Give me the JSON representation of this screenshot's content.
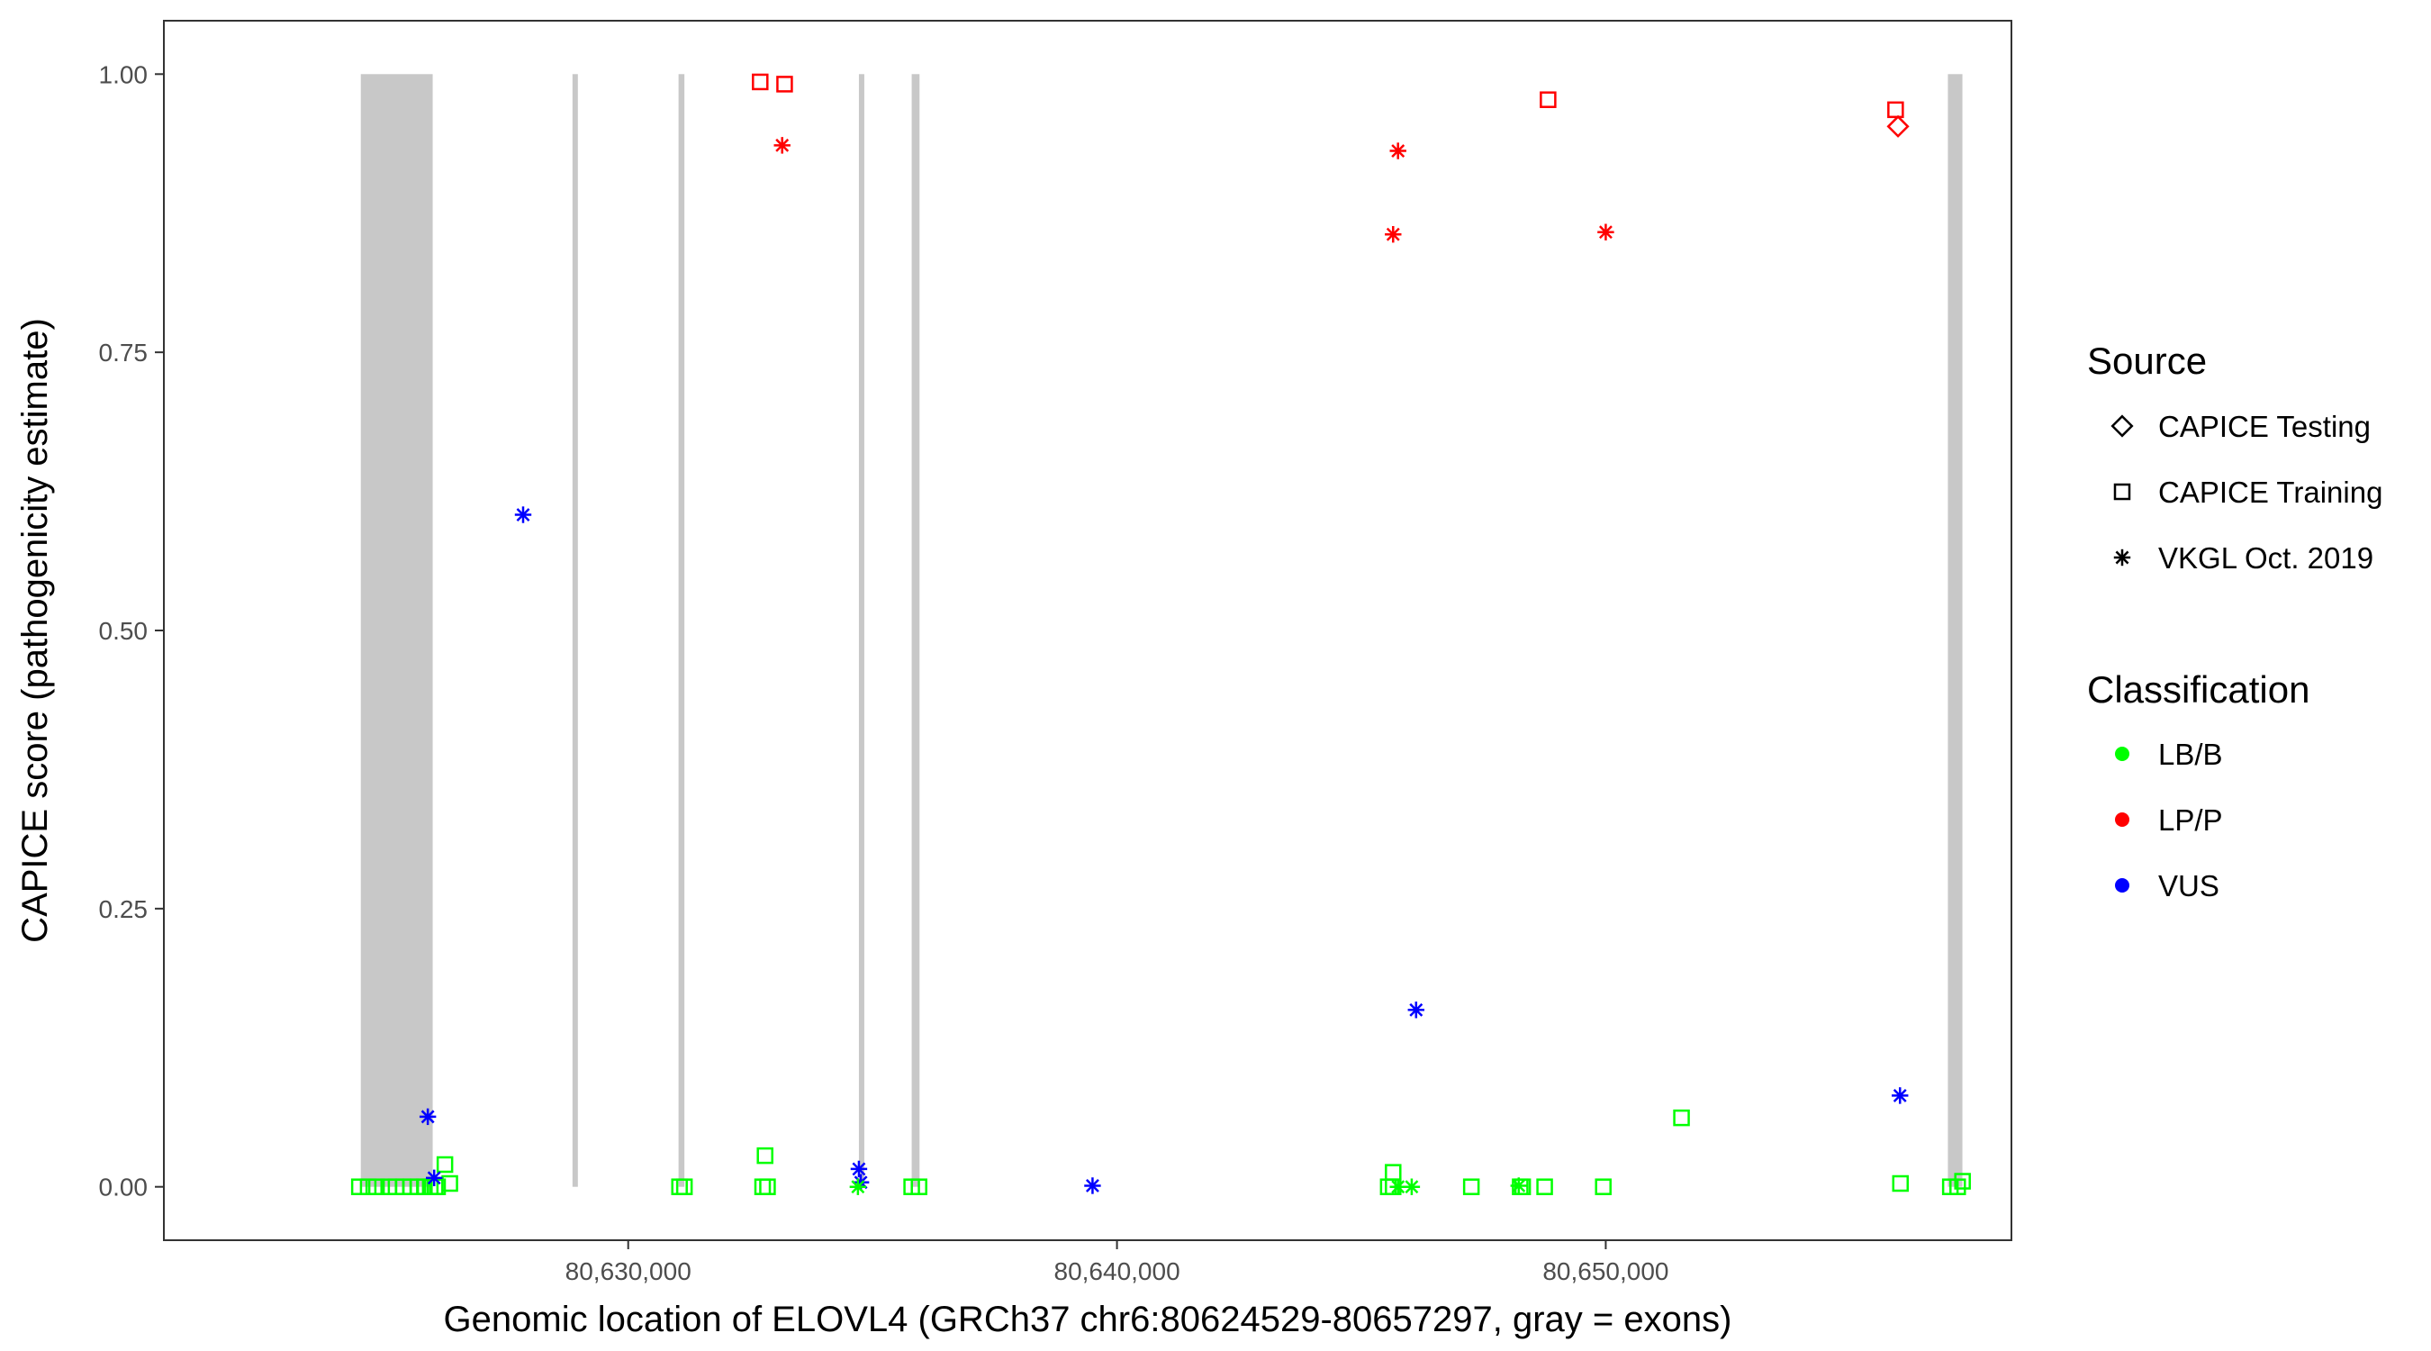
{
  "chart_data": {
    "type": "scatter",
    "xlabel": "Genomic location of ELOVL4 (GRCh37 chr6:80624529-80657297, gray = exons)",
    "ylabel": "CAPICE score (pathogenicity estimate)",
    "xlim": [
      80620500,
      80658300
    ],
    "ylim": [
      -0.048,
      1.048
    ],
    "x_ticks": [
      {
        "value": 80630000,
        "label": "80,630,000"
      },
      {
        "value": 80640000,
        "label": "80,640,000"
      },
      {
        "value": 80650000,
        "label": "80,650,000"
      }
    ],
    "y_ticks": [
      {
        "value": 0,
        "label": "0.00"
      },
      {
        "value": 0.25,
        "label": "0.25"
      },
      {
        "value": 0.5,
        "label": "0.50"
      },
      {
        "value": 0.75,
        "label": "0.75"
      },
      {
        "value": 1.0,
        "label": "1.00"
      }
    ],
    "grid": false,
    "legend_position": "right",
    "exons": [
      {
        "start": 80624529,
        "end": 80626000
      },
      {
        "start": 80628860,
        "end": 80628960
      },
      {
        "start": 80631030,
        "end": 80631150
      },
      {
        "start": 80634720,
        "end": 80634770
      },
      {
        "start": 80635800,
        "end": 80635960
      },
      {
        "start": 80657000,
        "end": 80657297
      }
    ],
    "legend": {
      "source_title": "Source",
      "source_items": [
        {
          "label": "CAPICE Testing",
          "shape": "diamond"
        },
        {
          "label": "CAPICE Training",
          "shape": "square"
        },
        {
          "label": "VKGL Oct. 2019",
          "shape": "asterisk"
        }
      ],
      "class_title": "Classification",
      "class_items": [
        {
          "label": "LB/B",
          "color": "#00ff00"
        },
        {
          "label": "LP/P",
          "color": "#ff0000"
        },
        {
          "label": "VUS",
          "color": "#0000ff"
        }
      ]
    },
    "colors": {
      "LB/B": "#00ff00",
      "LP/P": "#ff0000",
      "VUS": "#0000ff"
    },
    "points": [
      {
        "x": 80624500,
        "y": 0.0,
        "source": "CAPICE Training",
        "class": "LB/B"
      },
      {
        "x": 80624680,
        "y": 0.0,
        "source": "CAPICE Training",
        "class": "LB/B"
      },
      {
        "x": 80624850,
        "y": 0.0,
        "source": "CAPICE Training",
        "class": "LB/B"
      },
      {
        "x": 80625100,
        "y": 0.0,
        "source": "CAPICE Training",
        "class": "LB/B"
      },
      {
        "x": 80625250,
        "y": 0.0,
        "source": "CAPICE Training",
        "class": "LB/B"
      },
      {
        "x": 80625400,
        "y": 0.0,
        "source": "CAPICE Training",
        "class": "LB/B"
      },
      {
        "x": 80625550,
        "y": 0.0,
        "source": "CAPICE Training",
        "class": "LB/B"
      },
      {
        "x": 80625700,
        "y": 0.0,
        "source": "CAPICE Training",
        "class": "LB/B"
      },
      {
        "x": 80625830,
        "y": 0.0,
        "source": "CAPICE Training",
        "class": "LB/B"
      },
      {
        "x": 80625950,
        "y": 0.0,
        "source": "CAPICE Training",
        "class": "LB/B"
      },
      {
        "x": 80626050,
        "y": 0.0,
        "source": "CAPICE Training",
        "class": "LB/B"
      },
      {
        "x": 80626100,
        "y": 0.0,
        "source": "CAPICE Training",
        "class": "LB/B"
      },
      {
        "x": 80626250,
        "y": 0.02,
        "source": "CAPICE Training",
        "class": "LB/B"
      },
      {
        "x": 80626350,
        "y": 0.003,
        "source": "CAPICE Training",
        "class": "LB/B"
      },
      {
        "x": 80631050,
        "y": 0.0,
        "source": "CAPICE Training",
        "class": "LB/B"
      },
      {
        "x": 80631150,
        "y": 0.0,
        "source": "CAPICE Training",
        "class": "LB/B"
      },
      {
        "x": 80632750,
        "y": 0.0,
        "source": "CAPICE Training",
        "class": "LB/B"
      },
      {
        "x": 80632850,
        "y": 0.0,
        "source": "CAPICE Training",
        "class": "LB/B"
      },
      {
        "x": 80632800,
        "y": 0.028,
        "source": "CAPICE Training",
        "class": "LB/B"
      },
      {
        "x": 80635800,
        "y": 0.0,
        "source": "CAPICE Training",
        "class": "LB/B"
      },
      {
        "x": 80635950,
        "y": 0.0,
        "source": "CAPICE Training",
        "class": "LB/B"
      },
      {
        "x": 80645550,
        "y": 0.0,
        "source": "CAPICE Training",
        "class": "LB/B"
      },
      {
        "x": 80645650,
        "y": 0.0,
        "source": "CAPICE Training",
        "class": "LB/B"
      },
      {
        "x": 80645650,
        "y": 0.013,
        "source": "CAPICE Training",
        "class": "LB/B"
      },
      {
        "x": 80647250,
        "y": 0.0,
        "source": "CAPICE Training",
        "class": "LB/B"
      },
      {
        "x": 80648250,
        "y": 0.0,
        "source": "CAPICE Training",
        "class": "LB/B"
      },
      {
        "x": 80648300,
        "y": 0.0,
        "source": "CAPICE Training",
        "class": "LB/B"
      },
      {
        "x": 80648750,
        "y": 0.0,
        "source": "CAPICE Training",
        "class": "LB/B"
      },
      {
        "x": 80649950,
        "y": 0.0,
        "source": "CAPICE Training",
        "class": "LB/B"
      },
      {
        "x": 80651550,
        "y": 0.062,
        "source": "CAPICE Training",
        "class": "LB/B"
      },
      {
        "x": 80656030,
        "y": 0.003,
        "source": "CAPICE Training",
        "class": "LB/B"
      },
      {
        "x": 80657050,
        "y": 0.0,
        "source": "CAPICE Training",
        "class": "LB/B"
      },
      {
        "x": 80657200,
        "y": 0.0,
        "source": "CAPICE Training",
        "class": "LB/B"
      },
      {
        "x": 80657300,
        "y": 0.005,
        "source": "CAPICE Training",
        "class": "LB/B"
      },
      {
        "x": 80632700,
        "y": 0.993,
        "source": "CAPICE Training",
        "class": "LP/P"
      },
      {
        "x": 80633200,
        "y": 0.991,
        "source": "CAPICE Training",
        "class": "LP/P"
      },
      {
        "x": 80648820,
        "y": 0.977,
        "source": "CAPICE Training",
        "class": "LP/P"
      },
      {
        "x": 80655930,
        "y": 0.968,
        "source": "CAPICE Training",
        "class": "LP/P"
      },
      {
        "x": 80655980,
        "y": 0.953,
        "source": "CAPICE Testing",
        "class": "LP/P"
      },
      {
        "x": 80633150,
        "y": 0.936,
        "source": "VKGL Oct. 2019",
        "class": "LP/P"
      },
      {
        "x": 80645750,
        "y": 0.931,
        "source": "VKGL Oct. 2019",
        "class": "LP/P"
      },
      {
        "x": 80645650,
        "y": 0.856,
        "source": "VKGL Oct. 2019",
        "class": "LP/P"
      },
      {
        "x": 80650000,
        "y": 0.858,
        "source": "VKGL Oct. 2019",
        "class": "LP/P"
      },
      {
        "x": 80627850,
        "y": 0.604,
        "source": "VKGL Oct. 2019",
        "class": "VUS"
      },
      {
        "x": 80625900,
        "y": 0.063,
        "source": "VKGL Oct. 2019",
        "class": "VUS"
      },
      {
        "x": 80626030,
        "y": 0.008,
        "source": "VKGL Oct. 2019",
        "class": "VUS"
      },
      {
        "x": 80634720,
        "y": 0.016,
        "source": "VKGL Oct. 2019",
        "class": "VUS"
      },
      {
        "x": 80634760,
        "y": 0.004,
        "source": "VKGL Oct. 2019",
        "class": "VUS"
      },
      {
        "x": 80639500,
        "y": 0.001,
        "source": "VKGL Oct. 2019",
        "class": "VUS"
      },
      {
        "x": 80646120,
        "y": 0.159,
        "source": "VKGL Oct. 2019",
        "class": "VUS"
      },
      {
        "x": 80656020,
        "y": 0.082,
        "source": "VKGL Oct. 2019",
        "class": "VUS"
      },
      {
        "x": 80634700,
        "y": 0.0,
        "source": "VKGL Oct. 2019",
        "class": "LB/B"
      },
      {
        "x": 80645750,
        "y": 0.0,
        "source": "VKGL Oct. 2019",
        "class": "LB/B"
      },
      {
        "x": 80646030,
        "y": 0.0,
        "source": "VKGL Oct. 2019",
        "class": "LB/B"
      },
      {
        "x": 80648220,
        "y": 0.001,
        "source": "VKGL Oct. 2019",
        "class": "LB/B"
      }
    ]
  }
}
